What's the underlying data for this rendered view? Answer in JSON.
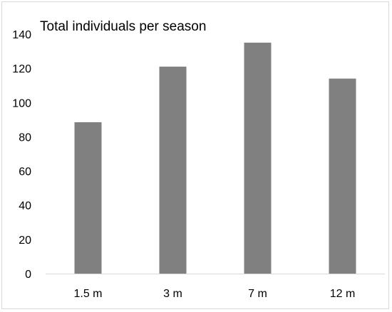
{
  "chart_data": {
    "type": "bar",
    "title": "Total individuals per season",
    "categories": [
      "1.5 m",
      "3 m",
      "7 m",
      "12 m"
    ],
    "values": [
      88.5,
      121,
      135,
      114
    ],
    "ylim": [
      0,
      140
    ],
    "yticks": [
      0,
      20,
      40,
      60,
      80,
      100,
      120,
      140
    ],
    "xlabel": "",
    "ylabel": "",
    "grid": false,
    "legend": "none",
    "bar_color": "#808080",
    "axis_color": "#d9d9d9"
  }
}
